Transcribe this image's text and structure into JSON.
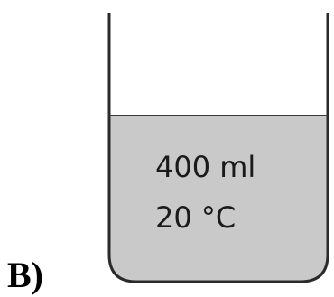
{
  "label": "B)",
  "beaker": {
    "volume": "400 ml",
    "temperature": "20 °C"
  }
}
